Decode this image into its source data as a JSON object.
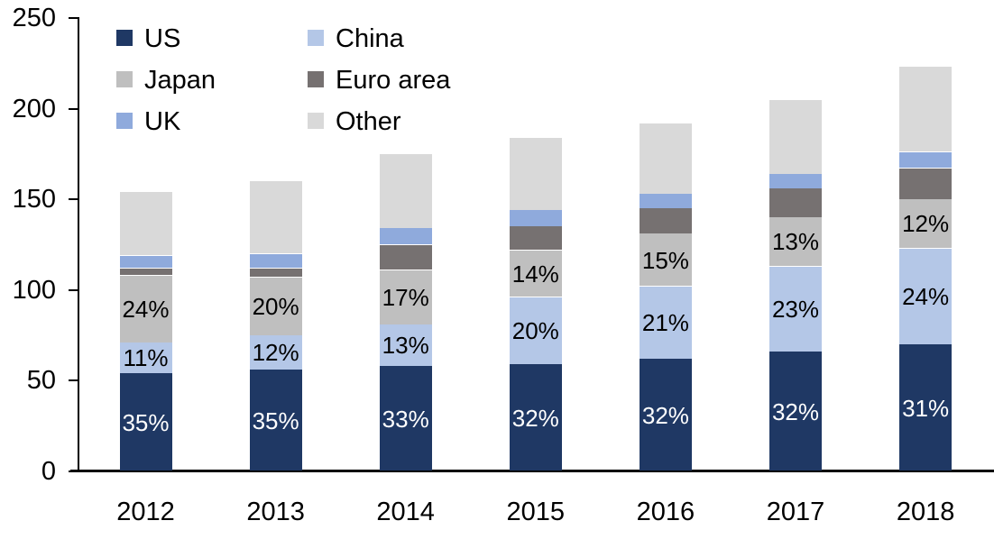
{
  "chart_data": {
    "type": "bar",
    "stacked": true,
    "title": "",
    "xlabel": "",
    "ylabel": "",
    "categories": [
      "2012",
      "2013",
      "2014",
      "2015",
      "2016",
      "2017",
      "2018"
    ],
    "series": [
      {
        "name": "US",
        "color": "#1F3864",
        "values": [
          54,
          56,
          58,
          59,
          62,
          66,
          70
        ],
        "labels": [
          "35%",
          "35%",
          "33%",
          "32%",
          "32%",
          "32%",
          "31%"
        ],
        "label_color": "#FFFFFF"
      },
      {
        "name": "China",
        "color": "#B4C7E7",
        "values": [
          17,
          19,
          23,
          37,
          40,
          47,
          53
        ],
        "labels": [
          "11%",
          "12%",
          "13%",
          "20%",
          "21%",
          "23%",
          "24%"
        ],
        "label_color": "#000000"
      },
      {
        "name": "Japan",
        "color": "#BFBFBF",
        "values": [
          37,
          32,
          30,
          26,
          29,
          27,
          27
        ],
        "labels": [
          "24%",
          "20%",
          "17%",
          "14%",
          "15%",
          "13%",
          "12%"
        ],
        "label_color": "#000000"
      },
      {
        "name": "Euro area",
        "color": "#767171",
        "values": [
          4,
          5,
          14,
          13,
          14,
          16,
          17
        ],
        "labels": null,
        "label_color": null
      },
      {
        "name": "UK",
        "color": "#8FAADC",
        "values": [
          7,
          8,
          9,
          9,
          8,
          8,
          9
        ],
        "labels": null,
        "label_color": null
      },
      {
        "name": "Other",
        "color": "#D9D9D9",
        "values": [
          35,
          40,
          41,
          40,
          39,
          41,
          47
        ],
        "labels": null,
        "label_color": null
      }
    ],
    "totals": [
      154,
      160,
      175,
      184,
      192,
      205,
      223
    ],
    "ylim": [
      0,
      250
    ],
    "yticks": [
      0,
      50,
      100,
      150,
      200,
      250
    ],
    "grid": false,
    "legend_position": "top-left",
    "legend_columns": [
      [
        "US",
        "Japan",
        "UK"
      ],
      [
        "China",
        "Euro area",
        "Other"
      ]
    ],
    "axis_color": "#000000"
  }
}
